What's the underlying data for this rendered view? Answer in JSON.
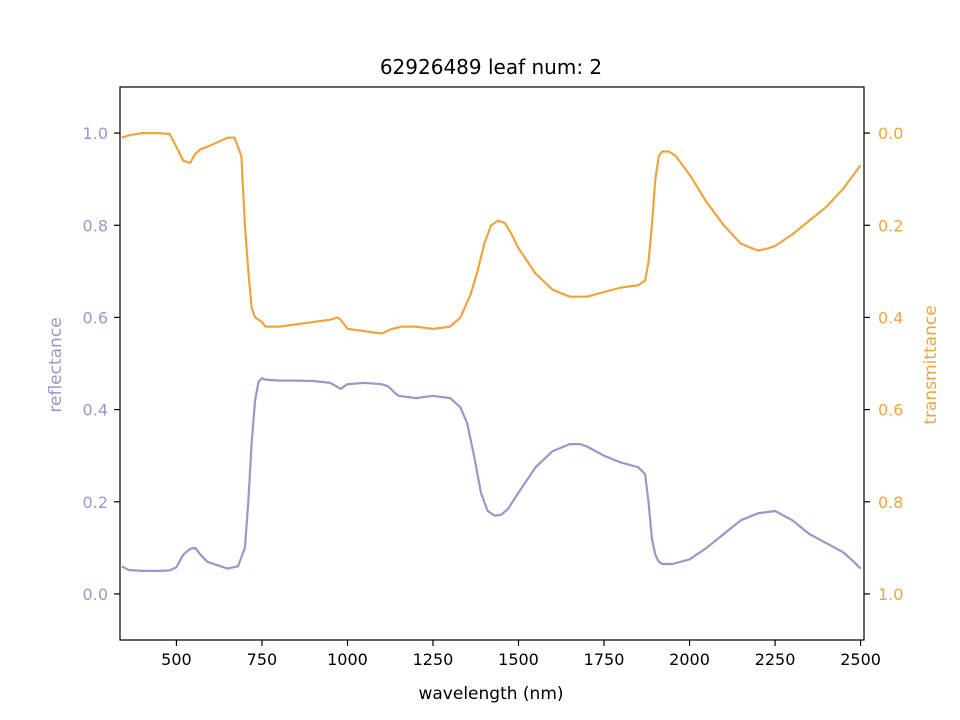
{
  "chart_data": {
    "type": "line",
    "title": "62926489 leaf num: 2",
    "xlabel": "wavelength (nm)",
    "ylabel_left": "reflectance",
    "ylabel_right": "transmittance",
    "xlim": [
      335,
      2510
    ],
    "ylim_left": [
      -0.1,
      1.1
    ],
    "ylim_right": [
      1.1,
      -0.1
    ],
    "right_axis_inverted": true,
    "x_ticks": [
      500,
      750,
      1000,
      1250,
      1500,
      1750,
      2000,
      2250,
      2500
    ],
    "y_ticks_left": [
      0.0,
      0.2,
      0.4,
      0.6,
      0.8,
      1.0
    ],
    "y_ticks_right": [
      0.0,
      0.2,
      0.4,
      0.6,
      0.8,
      1.0
    ],
    "grid": false,
    "colors": {
      "reflectance": "#9b97c6",
      "transmittance": "#eea53f",
      "axis": "#000000"
    },
    "series": [
      {
        "axis": "left",
        "x": [
          340,
          360,
          400,
          450,
          480,
          500,
          520,
          540,
          555,
          570,
          590,
          620,
          650,
          680,
          700,
          710,
          720,
          730,
          740,
          750,
          760,
          800,
          850,
          900,
          950,
          980,
          1000,
          1050,
          1100,
          1120,
          1140,
          1150,
          1200,
          1250,
          1300,
          1330,
          1350,
          1370,
          1390,
          1410,
          1430,
          1450,
          1470,
          1500,
          1550,
          1600,
          1650,
          1680,
          1700,
          1750,
          1800,
          1850,
          1870,
          1880,
          1890,
          1900,
          1910,
          1920,
          1950,
          2000,
          2050,
          2100,
          2150,
          2200,
          2250,
          2300,
          2350,
          2400,
          2450,
          2480,
          2500
        ],
        "y": [
          0.06,
          0.052,
          0.05,
          0.05,
          0.051,
          0.058,
          0.085,
          0.098,
          0.1,
          0.085,
          0.07,
          0.062,
          0.055,
          0.06,
          0.1,
          0.2,
          0.33,
          0.42,
          0.46,
          0.468,
          0.465,
          0.463,
          0.463,
          0.462,
          0.458,
          0.445,
          0.455,
          0.458,
          0.455,
          0.45,
          0.435,
          0.43,
          0.425,
          0.43,
          0.425,
          0.405,
          0.37,
          0.3,
          0.22,
          0.18,
          0.17,
          0.172,
          0.185,
          0.22,
          0.275,
          0.31,
          0.325,
          0.325,
          0.32,
          0.3,
          0.285,
          0.275,
          0.26,
          0.2,
          0.12,
          0.085,
          0.07,
          0.065,
          0.065,
          0.075,
          0.1,
          0.13,
          0.16,
          0.175,
          0.18,
          0.16,
          0.13,
          0.11,
          0.09,
          0.07,
          0.055
        ]
      },
      {
        "axis": "right",
        "x": [
          340,
          360,
          400,
          450,
          480,
          500,
          520,
          540,
          555,
          570,
          590,
          620,
          650,
          670,
          690,
          700,
          710,
          720,
          730,
          740,
          750,
          760,
          780,
          800,
          850,
          900,
          950,
          970,
          980,
          1000,
          1050,
          1100,
          1130,
          1160,
          1200,
          1250,
          1300,
          1330,
          1360,
          1380,
          1400,
          1420,
          1440,
          1460,
          1480,
          1500,
          1550,
          1600,
          1650,
          1700,
          1750,
          1800,
          1850,
          1870,
          1880,
          1890,
          1900,
          1910,
          1920,
          1940,
          1960,
          2000,
          2050,
          2100,
          2150,
          2200,
          2230,
          2250,
          2300,
          2350,
          2400,
          2450,
          2480,
          2500
        ],
        "y": [
          0.01,
          0.005,
          0.0,
          0.0,
          0.002,
          0.03,
          0.06,
          0.065,
          0.045,
          0.035,
          0.03,
          0.02,
          0.01,
          0.01,
          0.05,
          0.2,
          0.3,
          0.38,
          0.4,
          0.405,
          0.41,
          0.42,
          0.42,
          0.42,
          0.415,
          0.41,
          0.405,
          0.4,
          0.405,
          0.425,
          0.43,
          0.435,
          0.425,
          0.42,
          0.42,
          0.425,
          0.42,
          0.4,
          0.35,
          0.3,
          0.24,
          0.2,
          0.19,
          0.195,
          0.22,
          0.25,
          0.305,
          0.34,
          0.355,
          0.355,
          0.345,
          0.335,
          0.33,
          0.32,
          0.28,
          0.2,
          0.1,
          0.05,
          0.04,
          0.04,
          0.05,
          0.09,
          0.15,
          0.2,
          0.24,
          0.255,
          0.25,
          0.245,
          0.22,
          0.19,
          0.16,
          0.12,
          0.09,
          0.07
        ]
      }
    ]
  }
}
